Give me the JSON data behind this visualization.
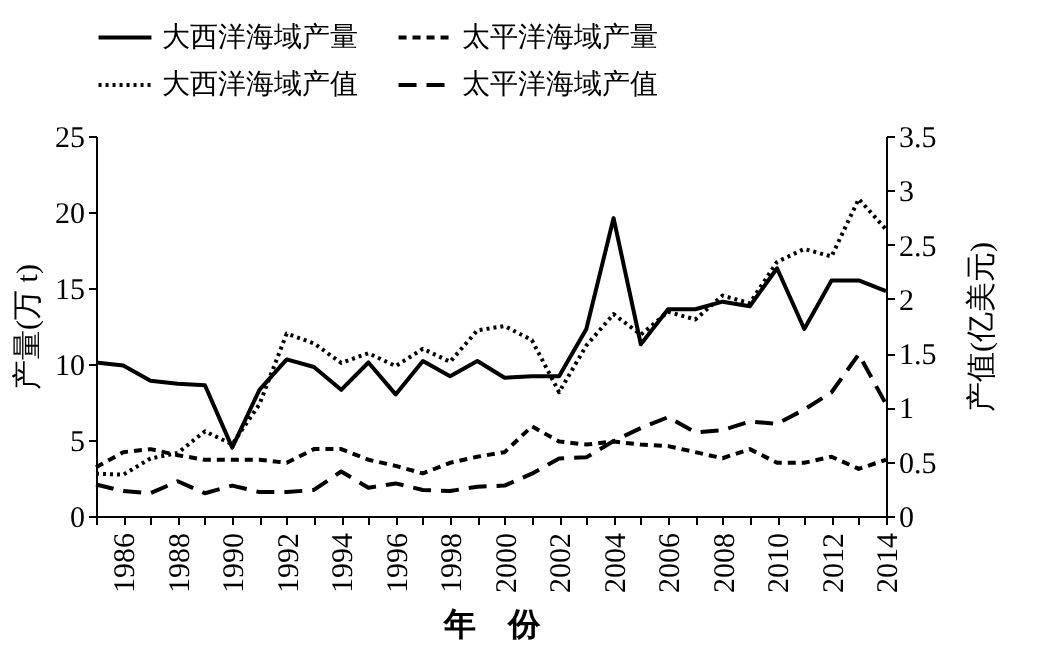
{
  "chart_data": {
    "type": "line",
    "xlabel": "年　份",
    "ylabel": "产量(万 t)",
    "y2label": "产值(亿美元)",
    "x": [
      1985,
      1986,
      1987,
      1988,
      1989,
      1990,
      1991,
      1992,
      1993,
      1994,
      1995,
      1996,
      1997,
      1998,
      1999,
      2000,
      2001,
      2002,
      2003,
      2004,
      2005,
      2006,
      2007,
      2008,
      2009,
      2010,
      2011,
      2012,
      2013,
      2014
    ],
    "series": [
      {
        "name": "大西洋海域产量",
        "color": "#000000",
        "line_style": "solid",
        "values": [
          10.1,
          9.9,
          8.9,
          8.7,
          8.6,
          4.5,
          8.3,
          10.3,
          9.8,
          8.3,
          10.1,
          8.0,
          10.2,
          9.2,
          10.2,
          9.1,
          9.2,
          9.2,
          12.3,
          19.6,
          11.3,
          13.6,
          13.6,
          14.1,
          13.8,
          16.3,
          12.3,
          15.5,
          15.5,
          14.8
        ]
      },
      {
        "name": "太平洋海域产量",
        "color": "#000000",
        "line_style": "dashed",
        "values": [
          3.2,
          4.2,
          4.4,
          4.0,
          3.7,
          3.7,
          3.7,
          3.5,
          4.4,
          4.4,
          3.7,
          3.3,
          2.8,
          3.5,
          3.9,
          4.2,
          5.9,
          4.9,
          4.7,
          4.9,
          4.7,
          4.6,
          4.2,
          3.8,
          4.4,
          3.5,
          3.5,
          3.9,
          3.1,
          3.7
        ]
      },
      {
        "name": "大西洋海域产值",
        "color": "#000000",
        "line_style": "dotted",
        "axis": "y2",
        "values": [
          0.39,
          0.38,
          0.53,
          0.58,
          0.78,
          0.66,
          1.03,
          1.68,
          1.59,
          1.41,
          1.5,
          1.38,
          1.54,
          1.42,
          1.71,
          1.75,
          1.62,
          1.14,
          1.57,
          1.86,
          1.67,
          1.88,
          1.81,
          2.03,
          1.96,
          2.34,
          2.46,
          2.39,
          2.92,
          2.64
        ]
      },
      {
        "name": "太平洋海域产值",
        "color": "#000000",
        "line_style": "dashed",
        "axis": "y2",
        "values": [
          0.29,
          0.23,
          0.21,
          0.32,
          0.21,
          0.28,
          0.22,
          0.22,
          0.24,
          0.41,
          0.26,
          0.3,
          0.24,
          0.23,
          0.27,
          0.28,
          0.39,
          0.53,
          0.54,
          0.69,
          0.81,
          0.91,
          0.77,
          0.79,
          0.87,
          0.85,
          0.98,
          1.14,
          1.49,
          1.03
        ]
      }
    ],
    "xlim": [
      1985,
      2014
    ],
    "xticks": [
      {
        "value": 1985,
        "label": null
      },
      1986,
      {
        "value": 1987,
        "label": null
      },
      1988,
      {
        "value": 1989,
        "label": null
      },
      1990,
      {
        "value": 1991,
        "label": null
      },
      1992,
      {
        "value": 1993,
        "label": null
      },
      1994,
      {
        "value": 1995,
        "label": null
      },
      1996,
      {
        "value": 1997,
        "label": null
      },
      1998,
      {
        "value": 1999,
        "label": null
      },
      2000,
      {
        "value": 2001,
        "label": null
      },
      2002,
      {
        "value": 2003,
        "label": null
      },
      2004,
      {
        "value": 2005,
        "label": null
      },
      2006,
      {
        "value": 2007,
        "label": null
      },
      2008,
      {
        "value": 2009,
        "label": null
      },
      2010,
      {
        "value": 2011,
        "label": null
      },
      2012,
      {
        "value": 2013,
        "label": null
      },
      2014
    ],
    "ylim": [
      0,
      25
    ],
    "yticks": [
      0,
      5,
      10,
      15,
      20,
      25
    ],
    "y2lim": [
      0,
      3.5
    ],
    "y2ticks": [
      0,
      0.5,
      1,
      1.5,
      2,
      2.5,
      3,
      3.5
    ],
    "grid": false,
    "legend": "top",
    "marker": "none"
  }
}
